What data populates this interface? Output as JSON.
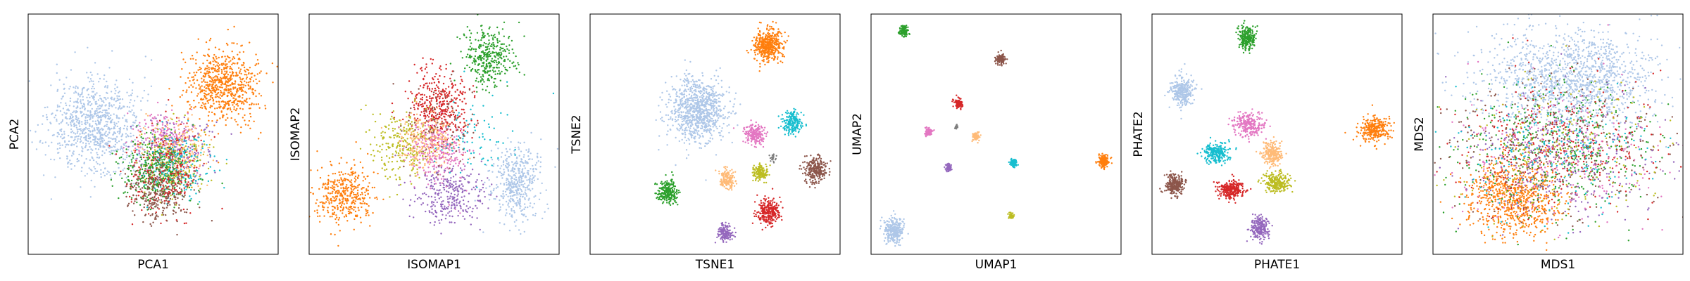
{
  "figure": {
    "panel_count": 6
  },
  "chart_data": [
    {
      "type": "scatter",
      "xlabel": "PCA1",
      "ylabel": "PCA2",
      "xlim": [
        0,
        100
      ],
      "ylim": [
        0,
        100
      ],
      "xticks": false,
      "yticks": false,
      "clusters": [
        {
          "color": "#aec7e8",
          "cx": 27,
          "cy": 53,
          "sx": 9,
          "sy": 10,
          "n": 900
        },
        {
          "color": "#ff7f0e",
          "cx": 78,
          "cy": 71,
          "sx": 7,
          "sy": 8,
          "n": 700
        },
        {
          "color": "#e377c2",
          "cx": 56,
          "cy": 48,
          "sx": 6,
          "sy": 6,
          "n": 200
        },
        {
          "color": "#9467bd",
          "cx": 58,
          "cy": 44,
          "sx": 7,
          "sy": 6,
          "n": 200
        },
        {
          "color": "#ffbb78",
          "cx": 60,
          "cy": 42,
          "sx": 7,
          "sy": 7,
          "n": 200
        },
        {
          "color": "#bcbd22",
          "cx": 58,
          "cy": 38,
          "sx": 7,
          "sy": 7,
          "n": 200
        },
        {
          "color": "#17becf",
          "cx": 59,
          "cy": 37,
          "sx": 7,
          "sy": 7,
          "n": 200
        },
        {
          "color": "#d62728",
          "cx": 54,
          "cy": 34,
          "sx": 7,
          "sy": 8,
          "n": 260
        },
        {
          "color": "#2ca02c",
          "cx": 50,
          "cy": 34,
          "sx": 7,
          "sy": 7,
          "n": 300
        },
        {
          "color": "#8c564b",
          "cx": 53,
          "cy": 25,
          "sx": 6,
          "sy": 6,
          "n": 260
        }
      ]
    },
    {
      "type": "scatter",
      "xlabel": "ISOMAP1",
      "ylabel": "ISOMAP2",
      "xlim": [
        0,
        100
      ],
      "ylim": [
        0,
        100
      ],
      "xticks": false,
      "yticks": false,
      "clusters": [
        {
          "color": "#2ca02c",
          "cx": 72,
          "cy": 82,
          "sx": 5,
          "sy": 6,
          "n": 350
        },
        {
          "color": "#d62728",
          "cx": 52,
          "cy": 62,
          "sx": 6,
          "sy": 8,
          "n": 400
        },
        {
          "color": "#ff7f0e",
          "cx": 14,
          "cy": 25,
          "sx": 6,
          "sy": 6,
          "n": 400
        },
        {
          "color": "#bcbd22",
          "cx": 37,
          "cy": 45,
          "sx": 6,
          "sy": 7,
          "n": 250
        },
        {
          "color": "#ffbb78",
          "cx": 47,
          "cy": 47,
          "sx": 6,
          "sy": 6,
          "n": 250
        },
        {
          "color": "#e377c2",
          "cx": 52,
          "cy": 43,
          "sx": 6,
          "sy": 7,
          "n": 250
        },
        {
          "color": "#9467bd",
          "cx": 56,
          "cy": 25,
          "sx": 7,
          "sy": 6,
          "n": 300
        },
        {
          "color": "#aec7e8",
          "cx": 83,
          "cy": 30,
          "sx": 5,
          "sy": 8,
          "n": 450
        },
        {
          "color": "#17becf",
          "cx": 63,
          "cy": 48,
          "sx": 9,
          "sy": 9,
          "n": 80
        },
        {
          "color": "#8c564b",
          "cx": 50,
          "cy": 55,
          "sx": 9,
          "sy": 9,
          "n": 80
        }
      ]
    },
    {
      "type": "scatter",
      "xlabel": "TSNE1",
      "ylabel": "TSNE2",
      "xlim": [
        0,
        100
      ],
      "ylim": [
        0,
        100
      ],
      "xticks": false,
      "yticks": false,
      "clusters": [
        {
          "color": "#ff7f0e",
          "cx": 71,
          "cy": 87,
          "sx": 2.8,
          "sy": 3.2,
          "n": 450
        },
        {
          "color": "#aec7e8",
          "cx": 43,
          "cy": 60,
          "sx": 5.5,
          "sy": 6.5,
          "n": 900
        },
        {
          "color": "#17becf",
          "cx": 81,
          "cy": 55,
          "sx": 2,
          "sy": 2.2,
          "n": 200
        },
        {
          "color": "#e377c2",
          "cx": 66,
          "cy": 50,
          "sx": 2,
          "sy": 2.2,
          "n": 200
        },
        {
          "color": "#8c564b",
          "cx": 90,
          "cy": 35,
          "sx": 2.3,
          "sy": 2.6,
          "n": 250
        },
        {
          "color": "#bcbd22",
          "cx": 68,
          "cy": 34,
          "sx": 1.4,
          "sy": 1.6,
          "n": 150
        },
        {
          "color": "#ffbb78",
          "cx": 55,
          "cy": 31,
          "sx": 1.7,
          "sy": 2,
          "n": 150
        },
        {
          "color": "#2ca02c",
          "cx": 31,
          "cy": 26,
          "sx": 2,
          "sy": 2.4,
          "n": 250
        },
        {
          "color": "#d62728",
          "cx": 71,
          "cy": 18,
          "sx": 2.3,
          "sy": 2.8,
          "n": 250
        },
        {
          "color": "#9467bd",
          "cx": 54,
          "cy": 9,
          "sx": 1.6,
          "sy": 1.8,
          "n": 150
        },
        {
          "color": "#7f7f7f",
          "cx": 73,
          "cy": 40,
          "sx": 0.8,
          "sy": 0.8,
          "n": 25
        }
      ]
    },
    {
      "type": "scatter",
      "xlabel": "UMAP1",
      "ylabel": "UMAP2",
      "xlim": [
        0,
        100
      ],
      "ylim": [
        0,
        100
      ],
      "xticks": false,
      "yticks": false,
      "clusters": [
        {
          "color": "#2ca02c",
          "cx": 13,
          "cy": 93,
          "sx": 0.9,
          "sy": 1.1,
          "n": 120
        },
        {
          "color": "#8c564b",
          "cx": 52,
          "cy": 81,
          "sx": 1,
          "sy": 1,
          "n": 120
        },
        {
          "color": "#d62728",
          "cx": 35,
          "cy": 63,
          "sx": 0.8,
          "sy": 1,
          "n": 100
        },
        {
          "color": "#e377c2",
          "cx": 23,
          "cy": 51,
          "sx": 0.7,
          "sy": 0.8,
          "n": 80
        },
        {
          "color": "#7f7f7f",
          "cx": 34,
          "cy": 53,
          "sx": 0.4,
          "sy": 0.4,
          "n": 15
        },
        {
          "color": "#ffbb78",
          "cx": 42,
          "cy": 49,
          "sx": 0.7,
          "sy": 0.8,
          "n": 70
        },
        {
          "color": "#9467bd",
          "cx": 31,
          "cy": 36,
          "sx": 0.6,
          "sy": 0.8,
          "n": 70
        },
        {
          "color": "#17becf",
          "cx": 57,
          "cy": 38,
          "sx": 0.7,
          "sy": 0.8,
          "n": 80
        },
        {
          "color": "#ff7f0e",
          "cx": 93,
          "cy": 39,
          "sx": 1.1,
          "sy": 1.4,
          "n": 150
        },
        {
          "color": "#bcbd22",
          "cx": 56,
          "cy": 16,
          "sx": 0.6,
          "sy": 0.7,
          "n": 50
        },
        {
          "color": "#aec7e8",
          "cx": 9,
          "cy": 10,
          "sx": 1.9,
          "sy": 2.6,
          "n": 300
        }
      ]
    },
    {
      "type": "scatter",
      "xlabel": "PHATE1",
      "ylabel": "PHATE2",
      "xlim": [
        0,
        100
      ],
      "ylim": [
        0,
        100
      ],
      "xticks": false,
      "yticks": false,
      "clusters": [
        {
          "color": "#2ca02c",
          "cx": 38,
          "cy": 90,
          "sx": 1.5,
          "sy": 2.5,
          "n": 250
        },
        {
          "color": "#aec7e8",
          "cx": 12,
          "cy": 68,
          "sx": 2.5,
          "sy": 3,
          "n": 300
        },
        {
          "color": "#e377c2",
          "cx": 39,
          "cy": 54,
          "sx": 3,
          "sy": 2.5,
          "n": 250
        },
        {
          "color": "#ff7f0e",
          "cx": 89,
          "cy": 52,
          "sx": 3,
          "sy": 2.5,
          "n": 280
        },
        {
          "color": "#17becf",
          "cx": 26,
          "cy": 42,
          "sx": 2.5,
          "sy": 2,
          "n": 250
        },
        {
          "color": "#ffbb78",
          "cx": 48,
          "cy": 42,
          "sx": 2,
          "sy": 2.5,
          "n": 250
        },
        {
          "color": "#bcbd22",
          "cx": 50,
          "cy": 30,
          "sx": 2.5,
          "sy": 2,
          "n": 250
        },
        {
          "color": "#d62728",
          "cx": 32,
          "cy": 27,
          "sx": 2.5,
          "sy": 2,
          "n": 280
        },
        {
          "color": "#8c564b",
          "cx": 9,
          "cy": 29,
          "sx": 2,
          "sy": 2,
          "n": 250
        },
        {
          "color": "#9467bd",
          "cx": 43,
          "cy": 11,
          "sx": 1.8,
          "sy": 2.5,
          "n": 220
        }
      ]
    },
    {
      "type": "scatter",
      "xlabel": "MDS1",
      "ylabel": "MDS2",
      "xlim": [
        0,
        100
      ],
      "ylim": [
        0,
        100
      ],
      "xticks": false,
      "yticks": false,
      "clusters": [
        {
          "color": "#aec7e8",
          "cx": 55,
          "cy": 73,
          "sx": 18,
          "sy": 10,
          "n": 1400
        },
        {
          "color": "#ff7f0e",
          "cx": 33,
          "cy": 23,
          "sx": 9,
          "sy": 8,
          "n": 800
        },
        {
          "color": "#2ca02c",
          "cx": 50,
          "cy": 45,
          "sx": 22,
          "sy": 14,
          "n": 450
        },
        {
          "color": "#d62728",
          "cx": 50,
          "cy": 45,
          "sx": 22,
          "sy": 14,
          "n": 350
        },
        {
          "color": "#8c564b",
          "cx": 48,
          "cy": 45,
          "sx": 22,
          "sy": 15,
          "n": 350
        },
        {
          "color": "#9467bd",
          "cx": 50,
          "cy": 42,
          "sx": 21,
          "sy": 14,
          "n": 300
        },
        {
          "color": "#e377c2",
          "cx": 50,
          "cy": 42,
          "sx": 21,
          "sy": 14,
          "n": 250
        },
        {
          "color": "#17becf",
          "cx": 50,
          "cy": 42,
          "sx": 21,
          "sy": 14,
          "n": 200
        },
        {
          "color": "#bcbd22",
          "cx": 50,
          "cy": 42,
          "sx": 21,
          "sy": 14,
          "n": 200
        }
      ]
    }
  ]
}
